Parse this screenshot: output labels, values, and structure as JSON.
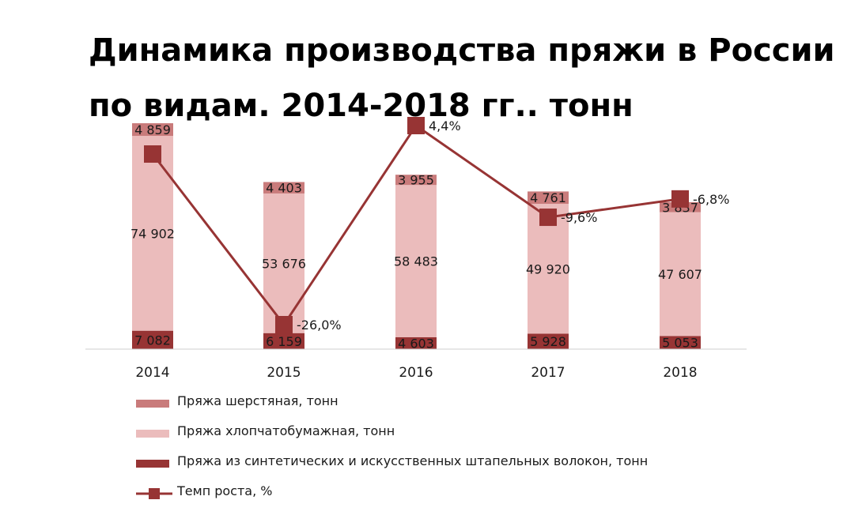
{
  "title_lines": [
    "Динамика производства пряжи в России",
    "по видам. 2014-2018 гг.. тонн"
  ],
  "colors": {
    "wool": "#c97b7b",
    "cotton": "#ebbcbc",
    "synthetic": "#973434",
    "growth": "#973434"
  },
  "chart_data": {
    "type": "bar",
    "stacked": true,
    "title": "Динамика производства пряжи в России по видам. 2014-2018 гг.. тонн",
    "categories": [
      "2014",
      "2015",
      "2016",
      "2017",
      "2018"
    ],
    "series": [
      {
        "name": "Пряжа из синтетических и искусственных штапельных волокон, тонн",
        "values": [
          7082,
          6159,
          4603,
          5928,
          5053
        ],
        "labels": [
          "7 082",
          "6 159",
          "4 603",
          "5 928",
          "5 053"
        ]
      },
      {
        "name": "Пряжа хлопчатобумажная, тонн",
        "values": [
          74902,
          53676,
          58483,
          49920,
          47607
        ],
        "labels": [
          "74 902",
          "53 676",
          "58 483",
          "49 920",
          "47 607"
        ]
      },
      {
        "name": "Пряжа шерстяная, тонн",
        "values": [
          4859,
          4403,
          3955,
          4761,
          3837
        ],
        "labels": [
          "4 859",
          "4 403",
          "3 955",
          "4 761",
          "3 837"
        ]
      }
    ],
    "line_series": {
      "name": "Темп роста, %",
      "values": [
        null,
        -26.0,
        4.4,
        -9.6,
        -6.8
      ],
      "labels": [
        "",
        "-26,0%",
        "4,4%",
        "-9,6%",
        "-6,8%"
      ],
      "first_point_value": 0
    },
    "ylim": [
      0,
      90000
    ],
    "line_ylim": [
      -30,
      5
    ],
    "legend_position": "bottom-left"
  },
  "legend": [
    {
      "label": "Пряжа шерстяная, тонн",
      "kind": "bar",
      "color": "#c97b7b"
    },
    {
      "label": "Пряжа хлопчатобумажная, тонн",
      "kind": "bar",
      "color": "#ebbcbc"
    },
    {
      "label": "Пряжа из синтетических и искусственных штапельных волокон, тонн",
      "kind": "bar",
      "color": "#973434"
    },
    {
      "label": "Темп роста, %",
      "kind": "line",
      "color": "#973434"
    }
  ]
}
